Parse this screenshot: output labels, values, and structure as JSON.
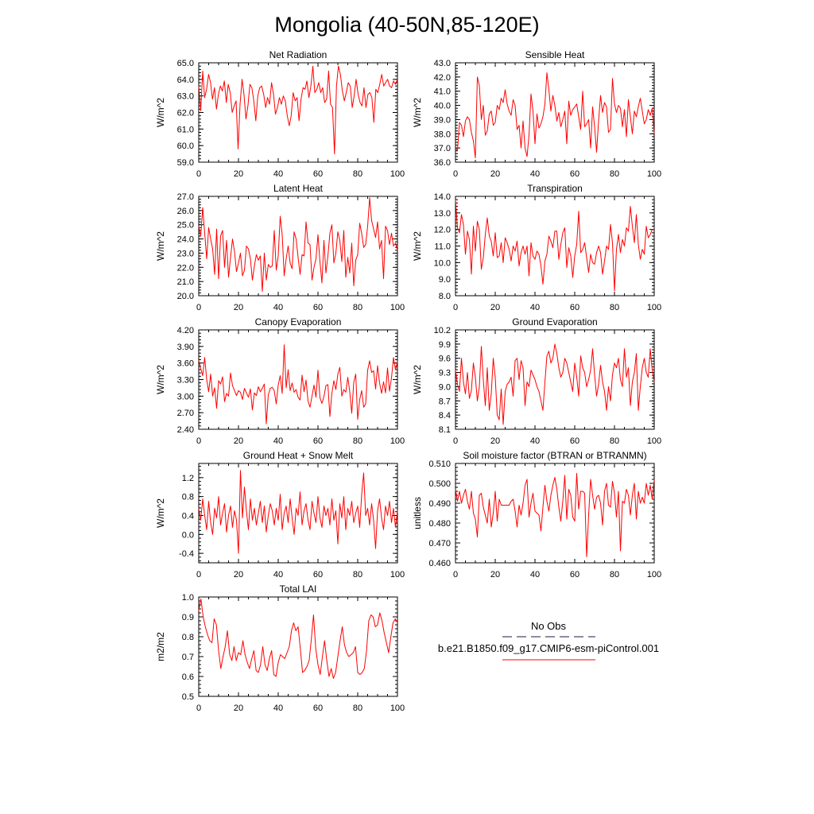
{
  "figure_title": "Mongolia (40-50N,85-120E)",
  "line_color": "#ff0000",
  "obs_color": "#1a1a4a",
  "legend": {
    "obs_label": "No Obs",
    "model_label": "b.e21.B1850.f09_g17.CMIP6-esm-piControl.001"
  },
  "chart_data": [
    {
      "id": "net-radiation",
      "type": "line",
      "title": "Net Radiation",
      "ylabel": "W/m^2",
      "xlim": [
        0,
        100
      ],
      "xticks": [
        0,
        20,
        40,
        60,
        80,
        100
      ],
      "ylim": [
        59.0,
        65.0
      ],
      "yticks": [
        "59.0",
        "60.0",
        "61.0",
        "62.0",
        "63.0",
        "64.0",
        "65.0"
      ],
      "values": [
        63.6,
        62.1,
        64.5,
        62.9,
        63.4,
        64.3,
        63.8,
        62.8,
        63.5,
        62.2,
        63.1,
        63.6,
        63.3,
        63.9,
        62.6,
        63.7,
        63.2,
        62.0,
        62.4,
        62.7,
        59.8,
        62.5,
        64.0,
        63.1,
        61.6,
        62.4,
        63.7,
        63.5,
        62.7,
        61.5,
        63.0,
        63.5,
        63.6,
        63.1,
        62.3,
        62.9,
        62.5,
        63.8,
        63.1,
        61.9,
        62.3,
        62.9,
        62.5,
        63.0,
        62.7,
        61.8,
        61.2,
        61.8,
        63.2,
        62.7,
        62.9,
        61.5,
        62.8,
        63.5,
        63.4,
        63.9,
        62.9,
        63.6,
        64.8,
        63.2,
        63.4,
        63.8,
        63.2,
        63.5,
        62.6,
        62.8,
        64.5,
        62.5,
        62.3,
        59.5,
        63.6,
        64.8,
        64.3,
        63.3,
        62.7,
        63.2,
        63.8,
        63.6,
        62.3,
        63.0,
        64.0,
        63.1,
        62.6,
        62.4,
        63.5,
        62.3,
        63.1,
        63.2,
        62.9,
        61.4,
        63.4,
        63.2,
        63.7,
        64.3,
        63.6,
        63.8,
        64.0,
        63.6,
        63.5,
        63.9,
        63.7,
        64.0
      ]
    },
    {
      "id": "sensible-heat",
      "type": "line",
      "title": "Sensible Heat",
      "ylabel": "W/m^2",
      "xlim": [
        0,
        100
      ],
      "xticks": [
        0,
        20,
        40,
        60,
        80,
        100
      ],
      "ylim": [
        36.0,
        43.0
      ],
      "yticks": [
        "36.0",
        "37.0",
        "38.0",
        "39.0",
        "40.0",
        "41.0",
        "42.0",
        "43.0"
      ],
      "values": [
        37.0,
        36.8,
        38.8,
        38.6,
        37.8,
        38.9,
        39.2,
        39.0,
        38.1,
        37.5,
        36.3,
        42.0,
        41.4,
        39.0,
        40.0,
        37.9,
        38.2,
        39.4,
        39.6,
        38.6,
        38.8,
        40.0,
        39.7,
        40.5,
        40.2,
        41.1,
        40.1,
        39.6,
        39.3,
        40.4,
        40.0,
        38.3,
        38.6,
        37.0,
        38.9,
        37.0,
        36.4,
        37.9,
        40.8,
        39.6,
        37.3,
        39.4,
        38.4,
        38.7,
        39.2,
        40.1,
        42.3,
        41.1,
        39.6,
        40.7,
        40.0,
        38.9,
        39.5,
        38.5,
        39.0,
        39.6,
        37.3,
        40.3,
        39.3,
        39.7,
        39.9,
        40.1,
        39.2,
        38.3,
        41.0,
        38.5,
        38.7,
        39.0,
        37.0,
        39.9,
        38.5,
        36.7,
        38.9,
        40.7,
        39.5,
        40.2,
        39.9,
        38.1,
        38.3,
        41.9,
        40.1,
        39.5,
        40.0,
        39.8,
        38.5,
        39.7,
        37.8,
        40.4,
        39.2,
        38.0,
        39.6,
        39.2,
        39.9,
        40.5,
        39.6,
        38.7,
        39.0,
        39.7,
        39.3,
        39.8,
        38.0
      ]
    },
    {
      "id": "latent-heat",
      "type": "line",
      "title": "Latent Heat",
      "ylabel": "W/m^2",
      "xlim": [
        0,
        100
      ],
      "xticks": [
        0,
        20,
        40,
        60,
        80,
        100
      ],
      "ylim": [
        20.0,
        27.0
      ],
      "yticks": [
        "20.0",
        "21.0",
        "22.0",
        "23.0",
        "24.0",
        "25.0",
        "26.0",
        "27.0"
      ],
      "values": [
        24.9,
        24.2,
        26.2,
        24.4,
        22.6,
        24.8,
        24.0,
        23.3,
        21.5,
        24.7,
        21.2,
        24.2,
        24.6,
        22.0,
        23.9,
        21.3,
        22.7,
        24.0,
        23.1,
        21.7,
        22.3,
        23.0,
        21.4,
        21.8,
        23.5,
        23.3,
        22.6,
        21.1,
        22.1,
        22.9,
        22.5,
        22.8,
        20.3,
        23.0,
        21.1,
        22.2,
        22.0,
        22.1,
        24.6,
        21.8,
        22.8,
        25.6,
        24.3,
        21.4,
        22.6,
        23.5,
        22.3,
        21.9,
        24.5,
        24.0,
        22.7,
        21.5,
        22.9,
        22.8,
        25.2,
        23.7,
        23.6,
        21.1,
        22.0,
        22.6,
        24.3,
        22.4,
        20.9,
        23.9,
        21.6,
        22.8,
        24.4,
        25.0,
        22.3,
        23.0,
        24.5,
        23.9,
        22.4,
        24.6,
        21.3,
        22.7,
        21.6,
        23.7,
        20.7,
        22.5,
        22.9,
        25.1,
        24.4,
        23.4,
        23.6,
        24.9,
        26.9,
        25.3,
        24.7,
        24.1,
        25.2,
        23.3,
        23.9,
        21.2,
        24.9,
        24.6,
        23.6,
        24.4,
        23.5,
        23.7,
        23.2
      ]
    },
    {
      "id": "transpiration",
      "type": "line",
      "title": "Transpiration",
      "ylabel": "W/m^2",
      "xlim": [
        0,
        100
      ],
      "xticks": [
        0,
        20,
        40,
        60,
        80,
        100
      ],
      "ylim": [
        8.0,
        14.0
      ],
      "yticks": [
        "8.0",
        "9.0",
        "10.0",
        "11.0",
        "12.0",
        "13.0",
        "14.0"
      ],
      "values": [
        13.8,
        12.1,
        11.8,
        12.9,
        12.3,
        10.5,
        11.9,
        11.4,
        9.3,
        12.2,
        10.7,
        12.5,
        12.0,
        9.6,
        10.3,
        11.7,
        12.7,
        11.6,
        11.3,
        10.4,
        11.8,
        10.3,
        10.4,
        11.2,
        10.0,
        11.5,
        11.2,
        10.8,
        10.1,
        11.0,
        10.7,
        11.3,
        9.8,
        10.6,
        11.0,
        10.5,
        11.0,
        9.2,
        11.2,
        10.4,
        10.2,
        10.7,
        10.5,
        9.8,
        8.7,
        10.1,
        10.5,
        11.6,
        11.3,
        10.9,
        11.9,
        11.9,
        10.2,
        11.1,
        11.8,
        12.1,
        9.7,
        10.9,
        10.4,
        9.1,
        10.4,
        11.1,
        13.1,
        10.6,
        10.8,
        11.2,
        10.3,
        9.4,
        10.5,
        10.0,
        9.9,
        10.6,
        11.0,
        10.6,
        9.3,
        10.1,
        11.0,
        10.8,
        12.3,
        11.2,
        8.3,
        10.8,
        11.7,
        10.6,
        11.4,
        11.0,
        12.1,
        11.9,
        13.4,
        12.2,
        11.2,
        12.9,
        11.1,
        10.2,
        10.8,
        10.5,
        12.2,
        11.5,
        11.7,
        12.0,
        12.0
      ]
    },
    {
      "id": "canopy-evaporation",
      "type": "line",
      "title": "Canopy Evaporation",
      "ylabel": "W/m^2",
      "xlim": [
        0,
        100
      ],
      "xticks": [
        0,
        20,
        40,
        60,
        80,
        100
      ],
      "ylim": [
        2.4,
        4.2
      ],
      "yticks": [
        "2.40",
        "2.70",
        "3.00",
        "3.30",
        "3.60",
        "3.90",
        "4.20"
      ],
      "values": [
        3.65,
        3.5,
        3.37,
        3.7,
        3.3,
        3.08,
        3.4,
        3.0,
        3.15,
        2.78,
        3.28,
        3.22,
        3.35,
        2.9,
        3.05,
        3.0,
        3.42,
        3.19,
        3.1,
        3.01,
        3.1,
        3.07,
        2.94,
        3.14,
        3.06,
        2.98,
        3.13,
        2.75,
        3.06,
        3.01,
        3.17,
        3.08,
        3.14,
        3.22,
        2.5,
        3.02,
        3.14,
        3.16,
        3.1,
        2.86,
        3.2,
        3.37,
        3.05,
        3.93,
        3.15,
        3.48,
        3.1,
        3.24,
        3.07,
        3.12,
        2.98,
        2.93,
        3.38,
        3.08,
        3.29,
        2.91,
        2.8,
        3.0,
        3.2,
        2.98,
        3.47,
        2.97,
        2.87,
        2.99,
        3.19,
        3.21,
        2.63,
        3.05,
        3.28,
        3.12,
        3.4,
        3.52,
        3.0,
        3.12,
        3.07,
        3.34,
        3.08,
        2.69,
        3.25,
        3.4,
        2.58,
        2.94,
        3.1,
        2.8,
        2.86,
        3.47,
        3.64,
        3.43,
        3.46,
        3.13,
        3.55,
        3.24,
        3.05,
        3.26,
        3.06,
        3.51,
        3.09,
        3.33,
        3.7,
        3.48,
        3.62
      ]
    },
    {
      "id": "ground-evaporation",
      "type": "line",
      "title": "Ground Evaporation",
      "ylabel": "W/m^2",
      "xlim": [
        0,
        100
      ],
      "xticks": [
        0,
        20,
        40,
        60,
        80,
        100
      ],
      "ylim": [
        8.1,
        10.2
      ],
      "yticks": [
        "8.1",
        "8.4",
        "8.7",
        "9.0",
        "9.3",
        "9.6",
        "9.9",
        "10.2"
      ],
      "values": [
        9.35,
        9.05,
        8.9,
        9.6,
        9.1,
        8.85,
        9.3,
        8.75,
        8.92,
        9.5,
        9.2,
        8.7,
        9.0,
        9.85,
        9.15,
        8.6,
        9.4,
        8.5,
        8.85,
        9.6,
        9.2,
        8.4,
        8.3,
        8.95,
        8.2,
        8.9,
        9.05,
        9.1,
        9.2,
        8.8,
        9.55,
        9.6,
        9.15,
        9.55,
        9.4,
        8.6,
        9.1,
        9.0,
        9.35,
        9.25,
        9.15,
        9.0,
        8.9,
        8.7,
        8.5,
        9.1,
        9.65,
        9.75,
        9.5,
        9.6,
        9.9,
        9.7,
        9.4,
        9.2,
        9.3,
        9.6,
        9.5,
        9.3,
        9.1,
        8.9,
        9.5,
        9.2,
        8.8,
        9.65,
        9.4,
        9.3,
        9.0,
        9.15,
        9.35,
        9.8,
        9.25,
        8.8,
        9.05,
        9.45,
        9.1,
        8.9,
        8.5,
        9.0,
        8.7,
        9.25,
        9.5,
        9.4,
        9.6,
        9.15,
        9.0,
        9.8,
        9.2,
        9.4,
        8.6,
        9.1,
        9.3,
        9.7,
        8.5,
        9.0,
        9.4,
        9.6,
        9.3,
        9.2,
        9.8,
        9.35,
        9.1
      ]
    },
    {
      "id": "ground-heat-snow-melt",
      "type": "line",
      "title": "Ground Heat + Snow Melt",
      "ylabel": "W/m^2",
      "xlim": [
        0,
        100
      ],
      "xticks": [
        0,
        20,
        40,
        60,
        80,
        100
      ],
      "ylim": [
        -0.6,
        1.5
      ],
      "yticks": [
        "-0.4",
        "0.0",
        "0.4",
        "0.8",
        "1.2"
      ],
      "values": [
        0.55,
        0.3,
        0.75,
        0.4,
        0.1,
        0.7,
        0.25,
        0.0,
        0.55,
        0.35,
        0.8,
        0.2,
        0.45,
        0.65,
        0.05,
        0.4,
        0.6,
        0.15,
        0.5,
        0.3,
        -0.4,
        1.35,
        0.35,
        1.0,
        0.5,
        0.1,
        0.75,
        0.3,
        0.55,
        0.2,
        0.45,
        0.7,
        0.25,
        0.6,
        0.05,
        0.4,
        0.65,
        0.5,
        0.2,
        0.55,
        0.3,
        0.85,
        0.1,
        0.45,
        0.6,
        0.25,
        0.75,
        0.35,
        0.0,
        0.55,
        0.4,
        0.9,
        0.2,
        0.5,
        0.65,
        0.3,
        0.1,
        0.7,
        0.45,
        0.25,
        0.8,
        0.35,
        0.15,
        0.6,
        0.4,
        0.55,
        0.2,
        0.75,
        0.3,
        0.5,
        -0.2,
        0.65,
        0.35,
        0.8,
        0.1,
        0.55,
        0.4,
        0.7,
        0.25,
        0.45,
        0.6,
        0.15,
        0.85,
        1.3,
        0.4,
        0.55,
        0.2,
        0.65,
        0.3,
        -0.3,
        0.5,
        0.75,
        0.35,
        0.1,
        0.6,
        0.4,
        0.7,
        0.25,
        0.55,
        0.15,
        0.5
      ]
    },
    {
      "id": "soil-moisture-factor",
      "type": "line",
      "title": "Soil moisture factor (BTRAN or BTRANMN)",
      "ylabel": "unitless",
      "xlim": [
        0,
        100
      ],
      "xticks": [
        0,
        20,
        40,
        60,
        80,
        100
      ],
      "ylim": [
        0.46,
        0.51
      ],
      "yticks": [
        "0.460",
        "0.470",
        "0.480",
        "0.490",
        "0.500",
        "0.510"
      ],
      "values": [
        0.497,
        0.491,
        0.496,
        0.49,
        0.494,
        0.497,
        0.491,
        0.487,
        0.496,
        0.485,
        0.482,
        0.473,
        0.494,
        0.495,
        0.488,
        0.484,
        0.48,
        0.492,
        0.478,
        0.485,
        0.496,
        0.481,
        0.492,
        0.489,
        0.489,
        0.489,
        0.489,
        0.489,
        0.491,
        0.492,
        0.486,
        0.478,
        0.489,
        0.484,
        0.49,
        0.499,
        0.502,
        0.483,
        0.49,
        0.495,
        0.486,
        0.485,
        0.484,
        0.476,
        0.488,
        0.499,
        0.491,
        0.486,
        0.494,
        0.499,
        0.503,
        0.497,
        0.488,
        0.481,
        0.491,
        0.504,
        0.482,
        0.497,
        0.494,
        0.483,
        0.481,
        0.505,
        0.487,
        0.496,
        0.496,
        0.495,
        0.463,
        0.484,
        0.502,
        0.494,
        0.487,
        0.493,
        0.494,
        0.49,
        0.479,
        0.496,
        0.5,
        0.489,
        0.488,
        0.501,
        0.495,
        0.483,
        0.496,
        0.466,
        0.491,
        0.49,
        0.497,
        0.494,
        0.484,
        0.494,
        0.5,
        0.482,
        0.496,
        0.49,
        0.493,
        0.49,
        0.5,
        0.494,
        0.499,
        0.492,
        0.502
      ]
    },
    {
      "id": "total-lai",
      "type": "line",
      "title": "Total LAI",
      "ylabel": "m2/m2",
      "xlim": [
        0,
        100
      ],
      "xticks": [
        0,
        20,
        40,
        60,
        80,
        100
      ],
      "ylim": [
        0.5,
        1.0
      ],
      "yticks": [
        "0.5",
        "0.6",
        "0.7",
        "0.8",
        "0.9",
        "1.0"
      ],
      "values": [
        0.93,
        0.99,
        0.9,
        0.85,
        0.81,
        0.78,
        0.77,
        0.89,
        0.86,
        0.73,
        0.64,
        0.7,
        0.75,
        0.83,
        0.71,
        0.68,
        0.75,
        0.68,
        0.72,
        0.71,
        0.78,
        0.71,
        0.67,
        0.64,
        0.69,
        0.73,
        0.63,
        0.62,
        0.66,
        0.75,
        0.66,
        0.63,
        0.69,
        0.73,
        0.61,
        0.6,
        0.67,
        0.71,
        0.7,
        0.69,
        0.72,
        0.75,
        0.83,
        0.87,
        0.83,
        0.85,
        0.74,
        0.62,
        0.63,
        0.65,
        0.68,
        0.79,
        0.91,
        0.74,
        0.66,
        0.61,
        0.7,
        0.78,
        0.68,
        0.6,
        0.64,
        0.59,
        0.62,
        0.7,
        0.78,
        0.85,
        0.76,
        0.72,
        0.7,
        0.71,
        0.72,
        0.75,
        0.62,
        0.61,
        0.62,
        0.64,
        0.73,
        0.88,
        0.91,
        0.9,
        0.85,
        0.86,
        0.92,
        0.88,
        0.82,
        0.77,
        0.72,
        0.8,
        0.87,
        0.89,
        0.87
      ]
    }
  ]
}
